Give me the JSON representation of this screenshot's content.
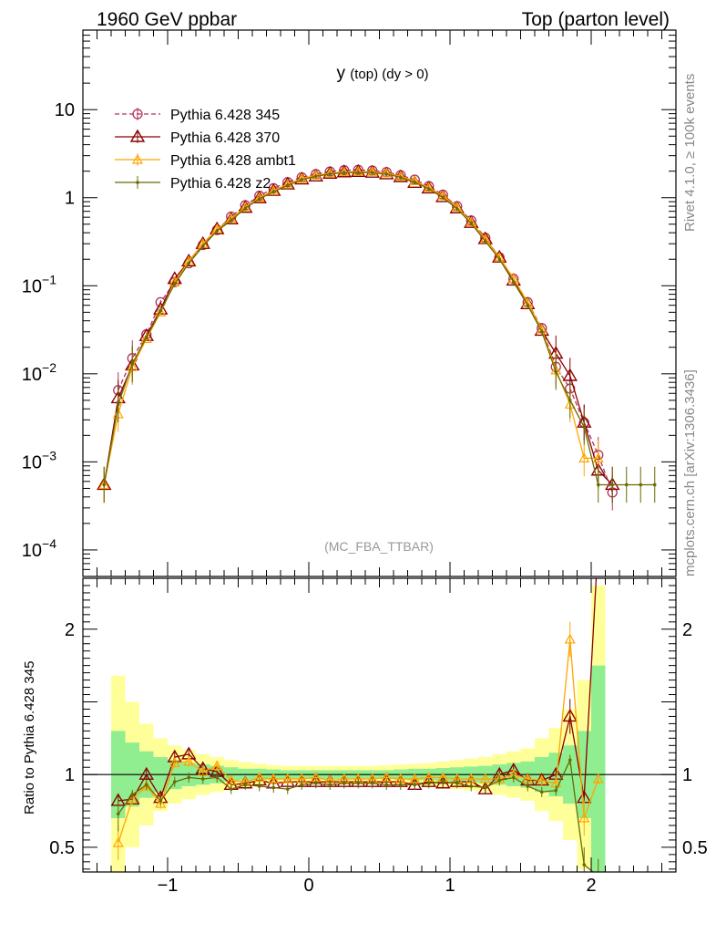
{
  "header": {
    "left": "1960 GeV ppbar",
    "right": "Top (parton level)"
  },
  "side_labels": {
    "rivet": "Rivet 4.1.0, ≥ 100k events",
    "mcplots": "mcplots.cern.ch [arXiv:1306.3436]"
  },
  "watermark": "(MC_FBA_TTBAR)",
  "ratio_ylabel": "Ratio to Pythia 6.428 345",
  "title_parts": {
    "main": "y",
    "sub": "(top) (dy > 0)"
  },
  "colors": {
    "s345": "#b03060",
    "s370": "#8b0000",
    "ambt1": "#ffa500",
    "z2": "#6b6b00",
    "band_inner": "#90ee90",
    "band_outer": "#ffff99"
  },
  "chart_data": [
    {
      "type": "line",
      "yscale": "log",
      "xlim": [
        -1.6,
        2.6
      ],
      "ylim": [
        5e-05,
        80
      ],
      "yticks": [
        {
          "value": 10,
          "label": "10"
        },
        {
          "value": 1,
          "label": "1"
        },
        {
          "value": 0.1,
          "label": "10",
          "sup": "−1"
        },
        {
          "value": 0.01,
          "label": "10",
          "sup": "−2"
        },
        {
          "value": 0.001,
          "label": "10",
          "sup": "−3"
        },
        {
          "value": 0.0001,
          "label": "10",
          "sup": "−4"
        }
      ],
      "x": [
        -1.45,
        -1.35,
        -1.25,
        -1.15,
        -1.05,
        -0.95,
        -0.85,
        -0.75,
        -0.65,
        -0.55,
        -0.45,
        -0.35,
        -0.25,
        -0.15,
        -0.05,
        0.05,
        0.15,
        0.25,
        0.35,
        0.45,
        0.55,
        0.65,
        0.75,
        0.85,
        0.95,
        1.05,
        1.15,
        1.25,
        1.35,
        1.45,
        1.55,
        1.65,
        1.75,
        1.85,
        1.95,
        2.05,
        2.15,
        2.25,
        2.35,
        2.45
      ],
      "legend": [
        {
          "name": "Pythia 6.428 345",
          "key": "s345"
        },
        {
          "name": "Pythia 6.428 370",
          "key": "s370"
        },
        {
          "name": "Pythia 6.428 ambt1",
          "key": "ambt1"
        },
        {
          "name": "Pythia 6.428 z2",
          "key": "z2"
        }
      ],
      "series": [
        {
          "name": "Pythia 6.428 345",
          "key": "s345",
          "marker": "circle",
          "dash": true,
          "values": [
            null,
            0.0065,
            0.015,
            0.028,
            0.065,
            0.11,
            0.18,
            0.29,
            0.43,
            0.61,
            0.82,
            1.05,
            1.28,
            1.5,
            1.7,
            1.85,
            1.98,
            2.05,
            2.07,
            2.03,
            1.95,
            1.8,
            1.6,
            1.35,
            1.08,
            0.8,
            0.55,
            0.35,
            0.21,
            0.12,
            0.065,
            0.033,
            0.012,
            0.0068,
            0.0028,
            0.0012,
            0.00045,
            null,
            null,
            null
          ]
        },
        {
          "name": "Pythia 6.428 370",
          "key": "s370",
          "marker": "triangle",
          "dash": false,
          "values": [
            0.00055,
            0.0053,
            0.0125,
            0.027,
            0.054,
            0.12,
            0.19,
            0.3,
            0.44,
            0.57,
            0.77,
            0.99,
            1.2,
            1.42,
            1.62,
            1.75,
            1.88,
            1.95,
            1.97,
            1.93,
            1.85,
            1.72,
            1.48,
            1.28,
            1.02,
            0.76,
            0.52,
            0.34,
            0.21,
            0.115,
            0.062,
            0.031,
            0.017,
            0.0095,
            0.0028,
            0.0008,
            0.00055,
            null,
            null,
            null
          ]
        },
        {
          "name": "Pythia 6.428 ambt1",
          "key": "ambt1",
          "marker": "triangle-small",
          "dash": false,
          "values": [
            0.00055,
            0.0035,
            0.012,
            0.025,
            0.05,
            0.11,
            0.19,
            0.3,
            0.44,
            0.58,
            0.78,
            1.0,
            1.2,
            1.42,
            1.65,
            1.8,
            1.9,
            1.96,
            1.98,
            1.97,
            1.9,
            1.75,
            1.55,
            1.3,
            1.05,
            0.78,
            0.53,
            0.34,
            0.21,
            0.12,
            0.064,
            0.032,
            0.011,
            0.0045,
            0.0011,
            0.0011,
            null,
            null,
            null,
            null
          ]
        },
        {
          "name": "Pythia 6.428 z2",
          "key": "z2",
          "marker": "dot",
          "dash": false,
          "values": [
            0.00055,
            0.0045,
            0.013,
            0.026,
            0.052,
            0.105,
            0.18,
            0.28,
            0.42,
            0.55,
            0.76,
            0.97,
            1.17,
            1.38,
            1.6,
            1.75,
            1.86,
            1.92,
            1.94,
            1.92,
            1.85,
            1.7,
            1.5,
            1.26,
            1.0,
            0.75,
            0.51,
            0.32,
            0.2,
            0.11,
            0.06,
            0.03,
            0.0105,
            0.005,
            0.0025,
            0.00055,
            0.00055,
            0.00055,
            0.00055,
            0.00055
          ]
        }
      ]
    },
    {
      "type": "line",
      "ylabel": "Ratio to Pythia 6.428 345",
      "xlim": [
        -1.6,
        2.6
      ],
      "ylim": [
        0.33,
        2.35
      ],
      "yticks": [
        {
          "value": 0.5,
          "label": "0.5"
        },
        {
          "value": 1,
          "label": "1"
        },
        {
          "value": 2,
          "label": "2"
        }
      ],
      "xticks": [
        {
          "value": -1,
          "label": "−1"
        },
        {
          "value": 0,
          "label": "0"
        },
        {
          "value": 1,
          "label": "1"
        },
        {
          "value": 2,
          "label": "2"
        }
      ],
      "reference": 1,
      "x": [
        -1.35,
        -1.25,
        -1.15,
        -1.05,
        -0.95,
        -0.85,
        -0.75,
        -0.65,
        -0.55,
        -0.45,
        -0.35,
        -0.25,
        -0.15,
        -0.05,
        0.05,
        0.15,
        0.25,
        0.35,
        0.45,
        0.55,
        0.65,
        0.75,
        0.85,
        0.95,
        1.05,
        1.15,
        1.25,
        1.35,
        1.45,
        1.55,
        1.65,
        1.75,
        1.85,
        1.95,
        2.05
      ],
      "band_inner_halfwidth": [
        0.3,
        0.22,
        0.16,
        0.12,
        0.1,
        0.08,
        0.07,
        0.06,
        0.05,
        0.04,
        0.04,
        0.035,
        0.03,
        0.03,
        0.03,
        0.03,
        0.03,
        0.03,
        0.03,
        0.03,
        0.035,
        0.04,
        0.04,
        0.045,
        0.05,
        0.055,
        0.06,
        0.07,
        0.08,
        0.09,
        0.12,
        0.15,
        0.2,
        0.3,
        0.75
      ],
      "band_outer_halfwidth": [
        0.68,
        0.5,
        0.35,
        0.25,
        0.2,
        0.17,
        0.14,
        0.12,
        0.1,
        0.085,
        0.075,
        0.065,
        0.06,
        0.06,
        0.06,
        0.06,
        0.06,
        0.06,
        0.06,
        0.065,
        0.07,
        0.075,
        0.08,
        0.09,
        0.1,
        0.11,
        0.12,
        0.14,
        0.16,
        0.18,
        0.25,
        0.32,
        0.45,
        0.65,
        1.3
      ],
      "series": [
        {
          "name": "Pythia 6.428 370",
          "key": "s370",
          "marker": "triangle",
          "values": [
            0.82,
            0.83,
            1.0,
            0.84,
            1.12,
            1.14,
            1.04,
            1.02,
            0.93,
            0.94,
            0.96,
            0.94,
            0.95,
            0.95,
            0.95,
            0.95,
            0.95,
            0.95,
            0.95,
            0.95,
            0.95,
            0.93,
            0.95,
            0.94,
            0.95,
            0.95,
            0.9,
            1.0,
            1.03,
            0.96,
            0.96,
            1.0,
            1.4,
            0.84,
            2.6
          ]
        },
        {
          "name": "Pythia 6.428 ambt1",
          "key": "ambt1",
          "marker": "triangle-small",
          "values": [
            0.53,
            0.83,
            0.92,
            0.8,
            1.08,
            1.09,
            1.02,
            1.06,
            0.96,
            0.95,
            0.98,
            0.97,
            0.97,
            0.97,
            0.98,
            0.96,
            0.97,
            0.97,
            0.97,
            0.98,
            0.97,
            0.97,
            0.98,
            0.98,
            0.97,
            0.97,
            0.97,
            0.97,
            1.0,
            0.97,
            0.96,
            0.94,
            1.93,
            0.7,
            0.97
          ]
        },
        {
          "name": "Pythia 6.428 z2",
          "key": "z2",
          "marker": "dot",
          "values": [
            0.73,
            0.86,
            0.93,
            0.82,
            0.95,
            0.98,
            0.97,
            0.98,
            0.9,
            0.93,
            0.92,
            0.91,
            0.9,
            0.93,
            0.94,
            0.93,
            0.94,
            0.94,
            0.94,
            0.93,
            0.93,
            0.93,
            0.94,
            0.95,
            0.94,
            0.92,
            0.91,
            0.96,
            0.98,
            0.92,
            0.88,
            0.89,
            1.1,
            0.38,
            0.3
          ]
        }
      ]
    }
  ]
}
